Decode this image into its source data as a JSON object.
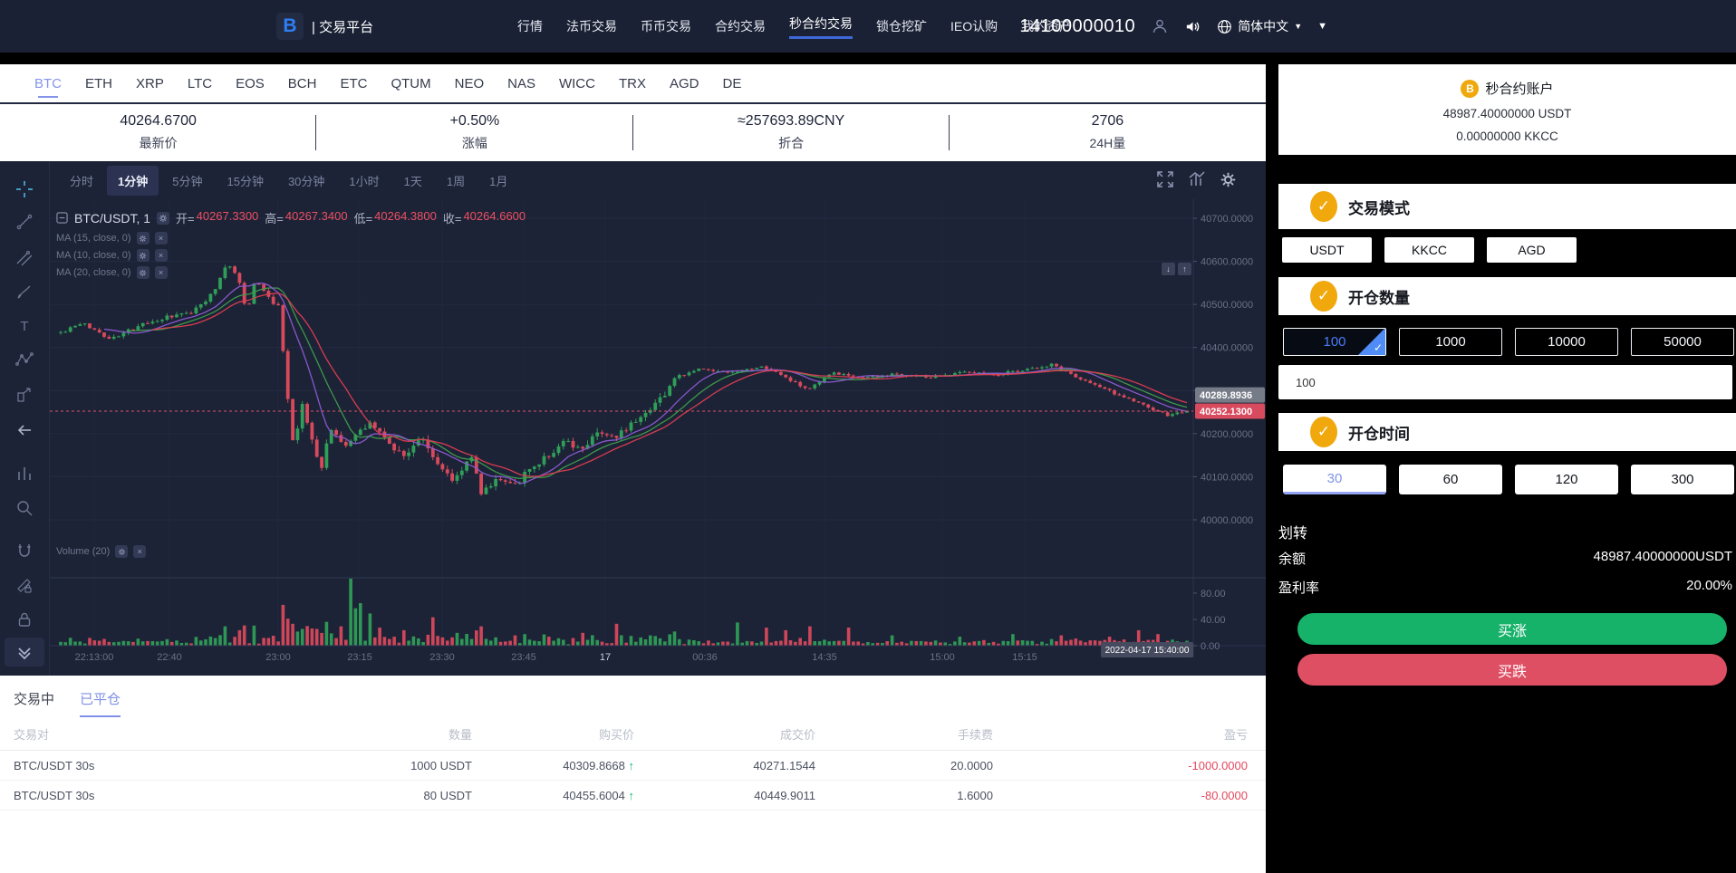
{
  "navbar": {
    "logo_text": "| 交易平台",
    "logo_letter": "B",
    "items": [
      "行情",
      "法币交易",
      "币币交易",
      "合约交易",
      "秒合约交易",
      "锁仓挖矿",
      "IEO认购",
      "我的资产"
    ],
    "active_item": "秒合约交易",
    "account_number": "14100000010",
    "language": "简体中文"
  },
  "coin_tabs": {
    "items": [
      "BTC",
      "ETH",
      "XRP",
      "LTC",
      "EOS",
      "BCH",
      "ETC",
      "QTUM",
      "NEO",
      "NAS",
      "WICC",
      "TRX",
      "AGD",
      "DE"
    ],
    "active": "BTC"
  },
  "stats": [
    {
      "value": "40264.6700",
      "label": "最新价"
    },
    {
      "value": "+0.50%",
      "label": "涨幅"
    },
    {
      "value": "≈257693.89CNY",
      "label": "折合"
    },
    {
      "value": "2706",
      "label": "24H量"
    }
  ],
  "chart": {
    "timeframes": [
      "分时",
      "1分钟",
      "5分钟",
      "15分钟",
      "30分钟",
      "1小时",
      "1天",
      "1周",
      "1月"
    ],
    "active_timeframe": "1分钟",
    "legend": {
      "symbol": "BTC/USDT, 1",
      "open_label": "开=",
      "open": "40267.3300",
      "high_label": "高=",
      "high": "40267.3400",
      "low_label": "低=",
      "low": "40264.3800",
      "close_label": "收=",
      "close": "40264.6600"
    },
    "ma_labels": [
      "MA (15, close, 0)",
      "MA (10, close, 0)",
      "MA (20, close, 0)"
    ],
    "volume_label": "Volume (20)",
    "y_ticks": [
      "40700.0000",
      "40600.0000",
      "40500.0000",
      "40400.0000",
      "40300.0000",
      "40200.0000",
      "40100.0000",
      "40000.0000"
    ],
    "vol_ticks": [
      "80.00",
      "40.00",
      "0.00"
    ],
    "x_ticks": [
      "22:13:00",
      "22:40",
      "23:00",
      "23:15",
      "23:30",
      "23:45",
      "17",
      "00:36",
      "14:35",
      "15:00",
      "15:15"
    ],
    "x_highlight_index": 6,
    "time_badge": "2022-04-17 15:40:00",
    "price_badges": [
      {
        "text": "40289.8936",
        "color": "#767b88"
      },
      {
        "text": "40252.1300",
        "color": "#d84a5e"
      }
    ],
    "price_line": "40252.1300",
    "colors": {
      "up": "#2f9e58",
      "down": "#d8495c",
      "ma10": "#8e5bd4",
      "ma15": "#3f9e4d",
      "ma20": "#e23d52",
      "grid": "#232a44",
      "axis": "#2b3150",
      "bg": "#1c2336"
    },
    "anchors": [
      [
        0.0,
        40435
      ],
      [
        0.02,
        40455
      ],
      [
        0.045,
        40420
      ],
      [
        0.07,
        40450
      ],
      [
        0.095,
        40470
      ],
      [
        0.115,
        40480
      ],
      [
        0.135,
        40525
      ],
      [
        0.148,
        40600
      ],
      [
        0.158,
        40560
      ],
      [
        0.165,
        40480
      ],
      [
        0.173,
        40560
      ],
      [
        0.183,
        40520
      ],
      [
        0.194,
        40490
      ],
      [
        0.2,
        40310
      ],
      [
        0.207,
        40160
      ],
      [
        0.214,
        40270
      ],
      [
        0.223,
        40185
      ],
      [
        0.231,
        40120
      ],
      [
        0.241,
        40220
      ],
      [
        0.251,
        40165
      ],
      [
        0.261,
        40195
      ],
      [
        0.276,
        40230
      ],
      [
        0.29,
        40180
      ],
      [
        0.305,
        40150
      ],
      [
        0.32,
        40190
      ],
      [
        0.335,
        40130
      ],
      [
        0.349,
        40090
      ],
      [
        0.364,
        40150
      ],
      [
        0.374,
        40060
      ],
      [
        0.389,
        40100
      ],
      [
        0.403,
        40080
      ],
      [
        0.418,
        40120
      ],
      [
        0.433,
        40150
      ],
      [
        0.448,
        40180
      ],
      [
        0.462,
        40160
      ],
      [
        0.477,
        40210
      ],
      [
        0.492,
        40185
      ],
      [
        0.506,
        40225
      ],
      [
        0.521,
        40255
      ],
      [
        0.535,
        40290
      ],
      [
        0.546,
        40330
      ],
      [
        0.566,
        40350
      ],
      [
        0.595,
        40340
      ],
      [
        0.625,
        40355
      ],
      [
        0.644,
        40330
      ],
      [
        0.664,
        40300
      ],
      [
        0.684,
        40340
      ],
      [
        0.713,
        40330
      ],
      [
        0.743,
        40338
      ],
      [
        0.772,
        40330
      ],
      [
        0.801,
        40345
      ],
      [
        0.831,
        40338
      ],
      [
        0.86,
        40350
      ],
      [
        0.88,
        40360
      ],
      [
        0.899,
        40335
      ],
      [
        0.919,
        40312
      ],
      [
        0.939,
        40290
      ],
      [
        0.958,
        40270
      ],
      [
        0.973,
        40252
      ],
      [
        0.983,
        40242
      ],
      [
        1.0,
        40252
      ]
    ],
    "vol_spikes": [
      [
        0.148,
        30
      ],
      [
        0.158,
        24
      ],
      [
        0.2,
        42
      ],
      [
        0.207,
        34
      ],
      [
        0.214,
        26
      ],
      [
        0.251,
        30
      ],
      [
        0.257,
        108
      ],
      [
        0.262,
        58
      ],
      [
        0.267,
        66
      ],
      [
        0.273,
        50
      ],
      [
        0.282,
        28
      ],
      [
        0.305,
        24
      ],
      [
        0.33,
        44
      ],
      [
        0.352,
        20
      ],
      [
        0.374,
        30
      ],
      [
        0.403,
        16
      ],
      [
        0.433,
        14
      ],
      [
        0.462,
        20
      ],
      [
        0.492,
        34
      ],
      [
        0.522,
        16
      ],
      [
        0.546,
        22
      ],
      [
        0.6,
        36
      ],
      [
        0.625,
        28
      ],
      [
        0.645,
        24
      ],
      [
        0.664,
        30
      ],
      [
        0.7,
        28
      ],
      [
        0.74,
        16
      ],
      [
        0.8,
        14
      ],
      [
        0.845,
        18
      ],
      [
        0.89,
        16
      ],
      [
        0.93,
        14
      ],
      [
        0.958,
        24
      ],
      [
        0.975,
        18
      ]
    ]
  },
  "panel": {
    "account_title": "秒合约账户",
    "balance_usdt": "48987.40000000 USDT",
    "balance_kkcc": "0.00000000 KKCC",
    "mode_title": "交易模式",
    "modes": [
      "USDT",
      "KKCC",
      "AGD"
    ],
    "amount_title": "开仓数量",
    "amounts": [
      "100",
      "1000",
      "10000",
      "50000"
    ],
    "selected_amount": "100",
    "amount_input": "100",
    "time_title": "开仓时间",
    "durations": [
      "30",
      "60",
      "120",
      "300"
    ],
    "selected_duration": "30",
    "transfer_label": "划转",
    "balance_label": "余额",
    "balance_value": "48987.40000000USDT",
    "profit_label": "盈利率",
    "profit_value": "20.00%",
    "buy_up": "买涨",
    "buy_down": "买跌"
  },
  "orders": {
    "tabs": [
      "交易中",
      "已平仓"
    ],
    "active_tab": "已平仓",
    "headers": [
      "交易对",
      "数量",
      "购买价",
      "成交价",
      "手续费",
      "盈亏"
    ],
    "rows": [
      {
        "pair": "BTC/USDT 30s",
        "amount": "1000 USDT",
        "buy_price": "40309.8668",
        "arrow": "↑",
        "deal_price": "40271.1544",
        "fee": "20.0000",
        "profit": "-1000.0000"
      },
      {
        "pair": "BTC/USDT 30s",
        "amount": "80 USDT",
        "buy_price": "40455.6004",
        "arrow": "↑",
        "deal_price": "40449.9011",
        "fee": "1.6000",
        "profit": "-80.0000"
      }
    ]
  }
}
